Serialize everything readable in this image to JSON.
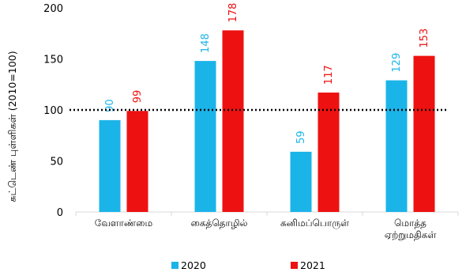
{
  "chart_data": {
    "type": "bar",
    "ylabel": "சுட்டெண் புள்ளிகள்  (2010=100)",
    "ylim": [
      0,
      200
    ],
    "yticks": [
      0,
      50,
      100,
      150,
      200
    ],
    "categories": [
      [
        "வேளாண்மை"
      ],
      [
        "கைத்தொழில்"
      ],
      [
        "கனிமப்பொருள்"
      ],
      [
        "மொத்த",
        "ஏற்றுமதிகள்"
      ]
    ],
    "series": [
      {
        "name": "2020",
        "color": "#1BB4E8",
        "values": [
          90,
          148,
          59,
          129
        ]
      },
      {
        "name": "2021",
        "color": "#EE1111",
        "values": [
          99,
          178,
          117,
          153
        ]
      }
    ],
    "reference_line": {
      "value": 100,
      "style": "dotted",
      "color": "#000000"
    },
    "legend": "bottom",
    "grid": false
  }
}
